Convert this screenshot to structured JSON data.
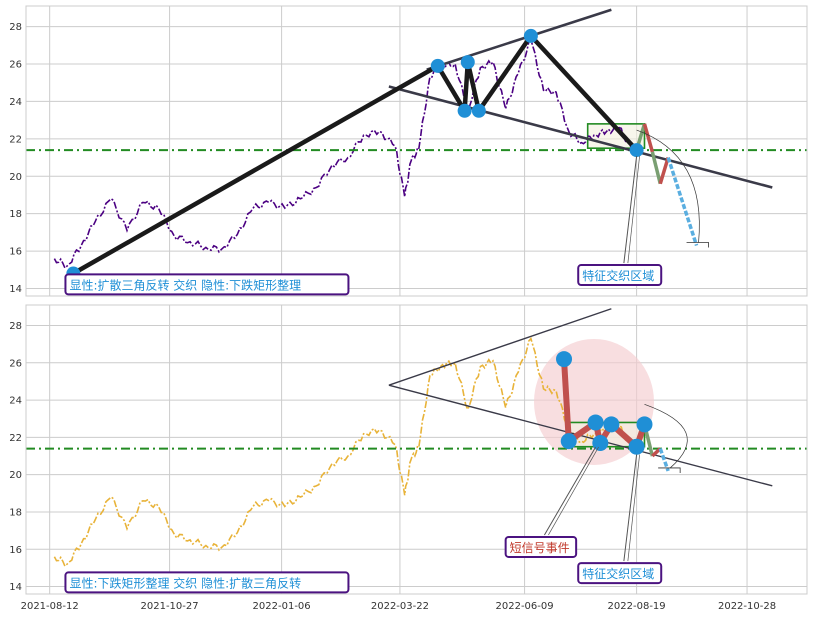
{
  "chart_data": [
    {
      "type": "line",
      "title": "",
      "xlabel": "",
      "ylabel": "",
      "ylim": [
        13.6,
        29.1
      ],
      "yticks": [
        14,
        16,
        18,
        20,
        22,
        24,
        26,
        28
      ],
      "grid": true,
      "colors": {
        "price": "#4b0082",
        "pattern": "#1a1a1a",
        "trend": "#3a3a48",
        "support": "#228b22",
        "marker": "#1f8fd6",
        "label": "#1f8fd6",
        "label_border": "#4b1380"
      },
      "price_x": [
        "2021-08-15",
        "2021-08-23",
        "2021-09-01",
        "2021-09-10",
        "2021-09-20",
        "2021-09-30",
        "2021-10-10",
        "2021-10-20",
        "2021-10-30",
        "2021-11-09",
        "2021-11-19",
        "2021-11-29",
        "2021-12-09",
        "2021-12-19",
        "2021-12-29",
        "2022-01-08",
        "2022-01-18",
        "2022-01-28",
        "2022-02-07",
        "2022-02-17",
        "2022-02-27",
        "2022-03-09",
        "2022-03-19",
        "2022-03-25",
        "2022-03-29",
        "2022-04-03",
        "2022-04-10",
        "2022-04-18",
        "2022-04-26",
        "2022-05-04",
        "2022-05-12",
        "2022-05-20",
        "2022-05-28",
        "2022-06-05",
        "2022-06-13",
        "2022-06-21",
        "2022-06-29",
        "2022-07-07",
        "2022-07-15",
        "2022-07-23",
        "2022-07-31",
        "2022-08-08",
        "2022-08-16",
        "2022-08-19"
      ],
      "price_y": [
        15.6,
        15.2,
        16.3,
        17.6,
        18.8,
        17.1,
        18.6,
        18.3,
        16.8,
        16.5,
        16.2,
        16.1,
        16.9,
        18.3,
        18.6,
        18.3,
        18.8,
        19.4,
        20.6,
        21.0,
        22.2,
        22.4,
        21.6,
        18.9,
        20.8,
        21.5,
        25.3,
        25.9,
        26.0,
        23.5,
        25.8,
        26.1,
        23.6,
        25.5,
        27.3,
        24.6,
        24.5,
        22.4,
        21.8,
        22.2,
        22.4,
        22.6,
        21.4,
        21.4
      ],
      "pattern_x": [
        "2021-08-27",
        "2022-04-15",
        "2022-05-02",
        "2022-05-04",
        "2022-05-11",
        "2022-06-13",
        "2022-08-19"
      ],
      "pattern_y": [
        14.8,
        25.9,
        23.5,
        26.1,
        23.5,
        27.5,
        21.4
      ],
      "trend_upper": {
        "x": [
          "2022-04-08",
          "2022-08-03"
        ],
        "y": [
          25.7,
          28.9
        ]
      },
      "trend_lower": {
        "x": [
          "2022-03-15",
          "2022-11-13"
        ],
        "y": [
          24.8,
          19.4
        ]
      },
      "support_y": 21.4,
      "rect": {
        "x": [
          "2022-07-19",
          "2022-08-24"
        ],
        "y": [
          21.5,
          22.8
        ]
      },
      "projection_x": [
        "2022-08-19",
        "2022-08-24",
        "2022-08-29",
        "2022-09-03",
        "2022-09-08",
        "2022-09-26"
      ],
      "projection_y": [
        21.4,
        22.8,
        21.3,
        19.6,
        21.0,
        16.3
      ],
      "annotations": [
        {
          "text": "显性:扩散三角反转 交织 隐性:下跌矩形整理",
          "x": "2021-08-22",
          "y": 13.9
        },
        {
          "text": "特征交织区域",
          "x": "2022-07-13",
          "y": 14.4
        }
      ]
    },
    {
      "type": "line",
      "title": "",
      "xlabel": "",
      "ylabel": "",
      "ylim": [
        13.6,
        29.1
      ],
      "yticks": [
        14,
        16,
        18,
        20,
        22,
        24,
        26,
        28
      ],
      "xticks": [
        "2021-08-12",
        "2021-10-27",
        "2022-01-06",
        "2022-03-22",
        "2022-06-09",
        "2022-08-19",
        "2022-10-28"
      ],
      "grid": true,
      "colors": {
        "price": "#e8b339",
        "pattern": "#c0504d",
        "trend": "#3a3a48",
        "support": "#228b22",
        "marker": "#1f8fd6",
        "label": "#1f8fd6",
        "signal_label": "#c0392b",
        "highlight": "#f4cdd0"
      },
      "price_x": [
        "2021-08-15",
        "2021-08-23",
        "2021-09-01",
        "2021-09-10",
        "2021-09-20",
        "2021-09-30",
        "2021-10-10",
        "2021-10-20",
        "2021-10-30",
        "2021-11-09",
        "2021-11-19",
        "2021-11-29",
        "2021-12-09",
        "2021-12-19",
        "2021-12-29",
        "2022-01-08",
        "2022-01-18",
        "2022-01-28",
        "2022-02-07",
        "2022-02-17",
        "2022-02-27",
        "2022-03-09",
        "2022-03-19",
        "2022-03-25",
        "2022-03-29",
        "2022-04-03",
        "2022-04-10",
        "2022-04-18",
        "2022-04-26",
        "2022-05-04",
        "2022-05-12",
        "2022-05-20",
        "2022-05-28",
        "2022-06-05",
        "2022-06-13",
        "2022-06-21",
        "2022-06-29",
        "2022-07-07",
        "2022-07-15",
        "2022-07-23",
        "2022-07-31",
        "2022-08-08",
        "2022-08-16",
        "2022-08-19"
      ],
      "price_y": [
        15.6,
        15.2,
        16.3,
        17.6,
        18.8,
        17.1,
        18.6,
        18.3,
        16.8,
        16.5,
        16.2,
        16.1,
        16.9,
        18.3,
        18.6,
        18.3,
        18.8,
        19.4,
        20.6,
        21.0,
        22.2,
        22.4,
        21.6,
        18.9,
        20.8,
        21.5,
        25.3,
        25.9,
        26.0,
        23.5,
        25.8,
        26.1,
        23.6,
        25.5,
        27.3,
        24.6,
        24.5,
        22.4,
        21.8,
        22.2,
        22.4,
        22.6,
        21.4,
        21.4
      ],
      "pattern_x": [
        "2022-07-04",
        "2022-07-07",
        "2022-07-24",
        "2022-07-27",
        "2022-08-03",
        "2022-08-19",
        "2022-08-24"
      ],
      "pattern_y": [
        26.2,
        21.8,
        22.8,
        21.7,
        22.7,
        21.5,
        22.7
      ],
      "trend_upper": {
        "x": [
          "2022-03-15",
          "2022-08-03"
        ],
        "y": [
          24.8,
          28.9
        ]
      },
      "trend_lower": {
        "x": [
          "2022-03-15",
          "2022-11-13"
        ],
        "y": [
          24.8,
          19.4
        ]
      },
      "support_y": 21.4,
      "rect": {
        "x": [
          "2022-07-07",
          "2022-08-24"
        ],
        "y": [
          21.5,
          22.8
        ]
      },
      "projection_x": [
        "2022-08-24",
        "2022-08-29",
        "2022-09-03",
        "2022-09-08"
      ],
      "projection_y": [
        22.7,
        21.0,
        21.4,
        20.2
      ],
      "highlight_circle": {
        "x": "2022-07-23",
        "y": 23.9
      },
      "annotations": [
        {
          "text": "显性:下跌矩形整理 交织 隐性:扩散三角反转",
          "x": "2021-08-22",
          "y": 13.9
        },
        {
          "text": "短信号事件",
          "x": "2022-05-28",
          "y": 15.8
        },
        {
          "text": "特征交织区域",
          "x": "2022-07-13",
          "y": 14.4
        }
      ]
    }
  ]
}
